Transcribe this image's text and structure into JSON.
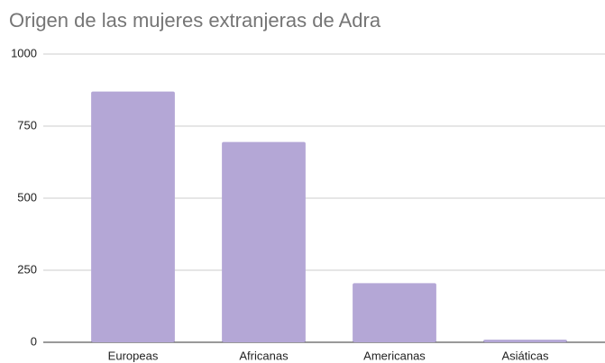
{
  "chart_data": {
    "type": "bar",
    "title": "Origen de las mujeres extranjeras de Adra",
    "categories": [
      "Europeas",
      "Africanas",
      "Americanas",
      "Asiáticas"
    ],
    "values": [
      870,
      695,
      205,
      9
    ],
    "color": "#b4a7d6",
    "ylim": [
      0,
      1000
    ],
    "yticks": [
      0,
      250,
      500,
      750,
      1000
    ],
    "grid": true
  }
}
